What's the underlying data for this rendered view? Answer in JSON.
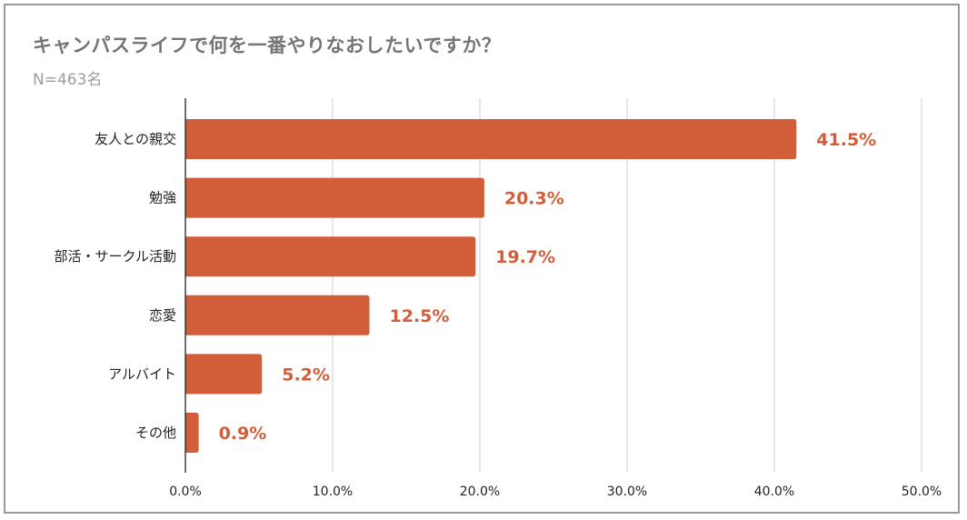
{
  "title": "キャンパスライフで何を一番やりなおしたいですか？",
  "subtitle": "N=463名",
  "colors": {
    "bar": "#d15e38",
    "data_label": "#d15e38",
    "grid": "#cccccc",
    "axis": "#222222",
    "border": "#9a9a9a",
    "title": "#757575",
    "subtitle": "#9e9e9e"
  },
  "chart_data": {
    "type": "bar",
    "orientation": "horizontal",
    "title": "キャンパスライフで何を一番やりなおしたいですか？",
    "subtitle": "N=463名",
    "categories": [
      "友人との親交",
      "勉強",
      "部活・サークル活動",
      "恋愛",
      "アルバイト",
      "その他"
    ],
    "values": [
      41.5,
      20.3,
      19.7,
      12.5,
      5.2,
      0.9
    ],
    "data_labels": [
      "41.5%",
      "20.3%",
      "19.7%",
      "12.5%",
      "5.2%",
      "0.9%"
    ],
    "xlim": [
      0,
      50
    ],
    "xticks": [
      0,
      10,
      20,
      30,
      40,
      50
    ],
    "xtick_labels": [
      "0.0%",
      "10.0%",
      "20.0%",
      "30.0%",
      "40.0%",
      "50.0%"
    ],
    "xlabel": "",
    "ylabel": "",
    "grid": "vertical",
    "legend": "none"
  }
}
